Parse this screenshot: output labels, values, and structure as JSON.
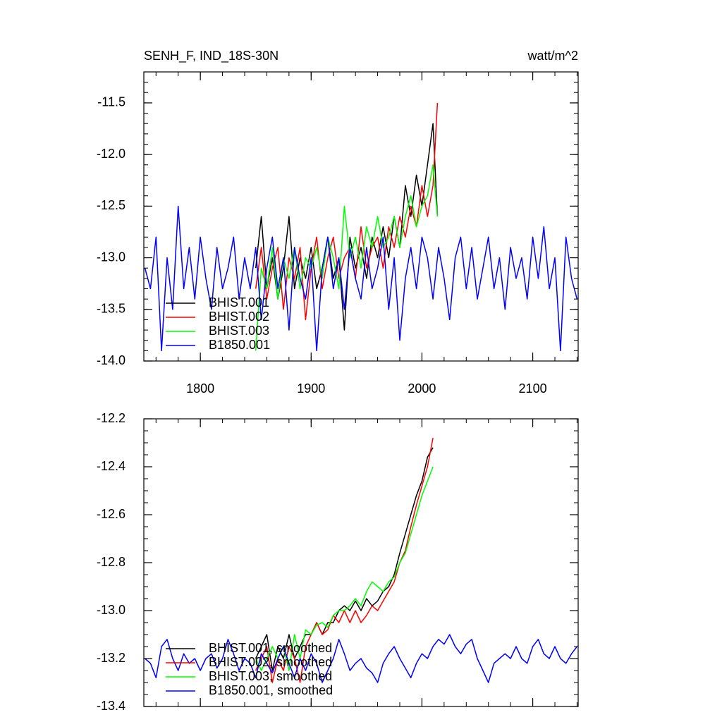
{
  "chart_data": [
    {
      "type": "line",
      "title": "SENH_F, IND_18S-30N",
      "units": "watt/m^2",
      "xlim": [
        1749,
        2141
      ],
      "ylim": [
        -14.0,
        -11.2
      ],
      "xticks": [
        1800,
        1900,
        2000,
        2100
      ],
      "yticks": [
        {
          "value": -14.0,
          "label": "-14.0"
        },
        -13.5,
        {
          "value": -13.0,
          "label": "-13.0"
        },
        -12.5,
        {
          "value": -12.0,
          "label": "-12.0"
        },
        -11.5
      ],
      "xtick_labels": true,
      "legend": "lower left",
      "series": [
        {
          "name": "BHIST.001",
          "color": "#000000",
          "x": [
            1850,
            1855,
            1860,
            1865,
            1870,
            1875,
            1880,
            1885,
            1890,
            1895,
            1900,
            1905,
            1910,
            1915,
            1920,
            1925,
            1930,
            1935,
            1940,
            1945,
            1950,
            1955,
            1960,
            1965,
            1970,
            1975,
            1980,
            1985,
            1990,
            1995,
            2000,
            2005,
            2010,
            2014
          ],
          "values": [
            -13.1,
            -12.6,
            -13.3,
            -13.0,
            -13.4,
            -13.1,
            -12.6,
            -13.3,
            -13.0,
            -13.2,
            -12.9,
            -13.3,
            -13.1,
            -12.8,
            -13.2,
            -13.0,
            -13.7,
            -12.8,
            -13.1,
            -12.9,
            -13.2,
            -12.8,
            -13.0,
            -12.7,
            -13.0,
            -12.6,
            -12.9,
            -12.3,
            -12.6,
            -12.2,
            -12.5,
            -12.1,
            -11.7,
            -12.6
          ]
        },
        {
          "name": "BHIST.002",
          "color": "#ff0000",
          "x": [
            1850,
            1855,
            1860,
            1865,
            1870,
            1875,
            1880,
            1885,
            1890,
            1895,
            1900,
            1905,
            1910,
            1915,
            1920,
            1925,
            1930,
            1935,
            1940,
            1945,
            1950,
            1955,
            1960,
            1965,
            1970,
            1975,
            1980,
            1985,
            1990,
            1995,
            2000,
            2005,
            2010,
            2014
          ],
          "values": [
            -13.3,
            -12.9,
            -13.4,
            -13.1,
            -12.9,
            -13.5,
            -13.0,
            -13.2,
            -12.9,
            -13.6,
            -13.1,
            -12.8,
            -13.3,
            -13.0,
            -12.8,
            -13.2,
            -13.0,
            -12.9,
            -13.2,
            -12.7,
            -13.1,
            -12.9,
            -12.8,
            -13.1,
            -12.7,
            -12.9,
            -12.6,
            -12.8,
            -12.5,
            -12.7,
            -12.3,
            -12.6,
            -12.3,
            -11.5
          ]
        },
        {
          "name": "BHIST.003",
          "color": "#00ff00",
          "x": [
            1850,
            1855,
            1860,
            1865,
            1870,
            1875,
            1880,
            1885,
            1890,
            1895,
            1900,
            1905,
            1910,
            1915,
            1920,
            1925,
            1930,
            1935,
            1940,
            1945,
            1950,
            1955,
            1960,
            1965,
            1970,
            1975,
            1980,
            1985,
            1990,
            1995,
            2000,
            2005,
            2010,
            2014
          ],
          "values": [
            -13.9,
            -13.1,
            -13.3,
            -12.9,
            -13.4,
            -13.0,
            -13.2,
            -12.9,
            -13.3,
            -13.0,
            -13.1,
            -12.9,
            -13.2,
            -12.8,
            -13.0,
            -13.3,
            -12.5,
            -13.0,
            -12.8,
            -13.1,
            -12.7,
            -12.9,
            -12.6,
            -12.9,
            -12.8,
            -12.6,
            -12.9,
            -12.6,
            -12.4,
            -12.7,
            -12.5,
            -12.4,
            -12.1,
            -12.6
          ]
        },
        {
          "name": "B1850.001",
          "color": "#0000ff",
          "x": [
            1750,
            1755,
            1760,
            1765,
            1770,
            1775,
            1780,
            1785,
            1790,
            1795,
            1800,
            1805,
            1810,
            1815,
            1820,
            1825,
            1830,
            1835,
            1840,
            1845,
            1850,
            1855,
            1860,
            1865,
            1870,
            1875,
            1880,
            1885,
            1890,
            1895,
            1900,
            1905,
            1910,
            1915,
            1920,
            1925,
            1930,
            1935,
            1940,
            1945,
            1950,
            1955,
            1960,
            1965,
            1970,
            1975,
            1980,
            1985,
            1990,
            1995,
            2000,
            2005,
            2010,
            2015,
            2020,
            2025,
            2030,
            2035,
            2040,
            2045,
            2050,
            2055,
            2060,
            2065,
            2070,
            2075,
            2080,
            2085,
            2090,
            2095,
            2100,
            2105,
            2110,
            2115,
            2120,
            2125,
            2130,
            2135,
            2140
          ],
          "values": [
            -13.1,
            -13.3,
            -12.8,
            -13.9,
            -13.0,
            -13.5,
            -12.5,
            -13.3,
            -12.9,
            -13.4,
            -12.8,
            -13.2,
            -13.5,
            -12.9,
            -13.3,
            -13.1,
            -12.8,
            -13.4,
            -13.0,
            -13.3,
            -12.9,
            -13.6,
            -13.1,
            -12.8,
            -13.3,
            -13.0,
            -13.7,
            -12.9,
            -13.2,
            -13.4,
            -13.0,
            -13.9,
            -13.1,
            -12.8,
            -13.3,
            -13.0,
            -13.5,
            -12.9,
            -13.2,
            -13.4,
            -12.9,
            -13.3,
            -13.1,
            -12.8,
            -13.5,
            -13.0,
            -13.8,
            -13.2,
            -12.9,
            -13.3,
            -12.8,
            -13.0,
            -13.4,
            -12.9,
            -13.2,
            -13.6,
            -13.0,
            -12.8,
            -13.3,
            -12.9,
            -13.4,
            -13.1,
            -12.8,
            -13.3,
            -13.0,
            -13.5,
            -12.9,
            -13.2,
            -13.0,
            -13.4,
            -12.8,
            -13.2,
            -12.7,
            -13.3,
            -13.0,
            -13.9,
            -12.8,
            -13.2,
            -13.4
          ]
        }
      ]
    },
    {
      "type": "line",
      "xlim": [
        1749,
        2141
      ],
      "ylim": [
        -13.4,
        -12.2
      ],
      "xticks": [
        1800,
        1900,
        2000,
        2100
      ],
      "yticks": [
        -13.4,
        -13.2,
        {
          "value": -13.0,
          "label": "-13.0"
        },
        -12.8,
        -12.6,
        -12.4,
        -12.2
      ],
      "xtick_labels": false,
      "legend": "lower left",
      "series": [
        {
          "name": "BHIST.001, smoothed",
          "color": "#000000",
          "x": [
            1850,
            1855,
            1860,
            1865,
            1870,
            1875,
            1880,
            1885,
            1890,
            1895,
            1900,
            1905,
            1910,
            1915,
            1920,
            1925,
            1930,
            1935,
            1940,
            1945,
            1950,
            1955,
            1960,
            1965,
            1970,
            1975,
            1980,
            1985,
            1990,
            1995,
            2000,
            2005,
            2010
          ],
          "values": [
            -13.2,
            -13.15,
            -13.1,
            -13.25,
            -13.15,
            -13.2,
            -13.1,
            -13.2,
            -13.15,
            -13.1,
            -13.1,
            -13.05,
            -13.1,
            -13.05,
            -13.05,
            -13.0,
            -12.98,
            -13.0,
            -12.96,
            -13.0,
            -12.95,
            -12.98,
            -12.96,
            -12.92,
            -12.9,
            -12.85,
            -12.76,
            -12.68,
            -12.6,
            -12.52,
            -12.46,
            -12.36,
            -12.32
          ]
        },
        {
          "name": "BHIST.002, smoothed",
          "color": "#ff0000",
          "x": [
            1850,
            1855,
            1860,
            1865,
            1870,
            1875,
            1880,
            1885,
            1890,
            1895,
            1900,
            1905,
            1910,
            1915,
            1920,
            1925,
            1930,
            1935,
            1940,
            1945,
            1950,
            1955,
            1960,
            1965,
            1970,
            1975,
            1980,
            1985,
            1990,
            1995,
            2000,
            2005,
            2010
          ],
          "values": [
            -13.25,
            -13.2,
            -13.15,
            -13.3,
            -13.2,
            -13.25,
            -13.15,
            -13.2,
            -13.3,
            -13.15,
            -13.1,
            -13.05,
            -13.1,
            -13.08,
            -13.02,
            -13.05,
            -13.0,
            -13.05,
            -13.0,
            -13.05,
            -13.02,
            -12.98,
            -13.0,
            -12.96,
            -12.92,
            -12.88,
            -12.8,
            -12.75,
            -12.65,
            -12.56,
            -12.48,
            -12.4,
            -12.28
          ]
        },
        {
          "name": "BHIST.003, smoothed",
          "color": "#00ff00",
          "x": [
            1850,
            1855,
            1860,
            1865,
            1870,
            1875,
            1880,
            1885,
            1890,
            1895,
            1900,
            1905,
            1910,
            1915,
            1920,
            1925,
            1930,
            1935,
            1940,
            1945,
            1950,
            1955,
            1960,
            1965,
            1970,
            1975,
            1980,
            1985,
            1990,
            1995,
            2000,
            2005,
            2010
          ],
          "values": [
            -13.2,
            -13.25,
            -13.2,
            -13.15,
            -13.2,
            -13.15,
            -13.25,
            -13.1,
            -13.2,
            -13.08,
            -13.1,
            -13.06,
            -13.05,
            -13.07,
            -13.02,
            -13.0,
            -13.0,
            -12.98,
            -12.95,
            -12.98,
            -12.92,
            -12.88,
            -12.9,
            -12.92,
            -12.88,
            -12.86,
            -12.8,
            -12.76,
            -12.68,
            -12.6,
            -12.52,
            -12.46,
            -12.4
          ]
        },
        {
          "name": "B1850.001, smoothed",
          "color": "#0000ff",
          "x": [
            1750,
            1755,
            1760,
            1765,
            1770,
            1775,
            1780,
            1785,
            1790,
            1795,
            1800,
            1805,
            1810,
            1815,
            1820,
            1825,
            1830,
            1835,
            1840,
            1845,
            1850,
            1855,
            1860,
            1865,
            1870,
            1875,
            1880,
            1885,
            1890,
            1895,
            1900,
            1905,
            1910,
            1915,
            1920,
            1925,
            1930,
            1935,
            1940,
            1945,
            1950,
            1955,
            1960,
            1965,
            1970,
            1975,
            1980,
            1985,
            1990,
            1995,
            2000,
            2005,
            2010,
            2015,
            2020,
            2025,
            2030,
            2035,
            2040,
            2045,
            2050,
            2055,
            2060,
            2065,
            2070,
            2075,
            2080,
            2085,
            2090,
            2095,
            2100,
            2105,
            2110,
            2115,
            2120,
            2125,
            2130,
            2135,
            2140
          ],
          "values": [
            -13.2,
            -13.22,
            -13.28,
            -13.15,
            -13.12,
            -13.2,
            -13.25,
            -13.18,
            -13.22,
            -13.2,
            -13.25,
            -13.2,
            -13.18,
            -13.24,
            -13.2,
            -13.12,
            -13.18,
            -13.25,
            -13.2,
            -13.22,
            -13.28,
            -13.18,
            -13.22,
            -13.26,
            -13.2,
            -13.15,
            -13.22,
            -13.28,
            -13.2,
            -13.25,
            -13.18,
            -13.22,
            -13.3,
            -13.25,
            -13.2,
            -13.12,
            -13.18,
            -13.25,
            -13.22,
            -13.2,
            -13.24,
            -13.26,
            -13.3,
            -13.22,
            -13.18,
            -13.15,
            -13.2,
            -13.24,
            -13.28,
            -13.22,
            -13.18,
            -13.2,
            -13.15,
            -13.12,
            -13.14,
            -13.1,
            -13.15,
            -13.18,
            -13.14,
            -13.12,
            -13.2,
            -13.25,
            -13.3,
            -13.22,
            -13.2,
            -13.18,
            -13.2,
            -13.15,
            -13.2,
            -13.22,
            -13.15,
            -13.12,
            -13.18,
            -13.2,
            -13.15,
            -13.2,
            -13.22,
            -13.18,
            -13.15
          ]
        }
      ]
    }
  ]
}
